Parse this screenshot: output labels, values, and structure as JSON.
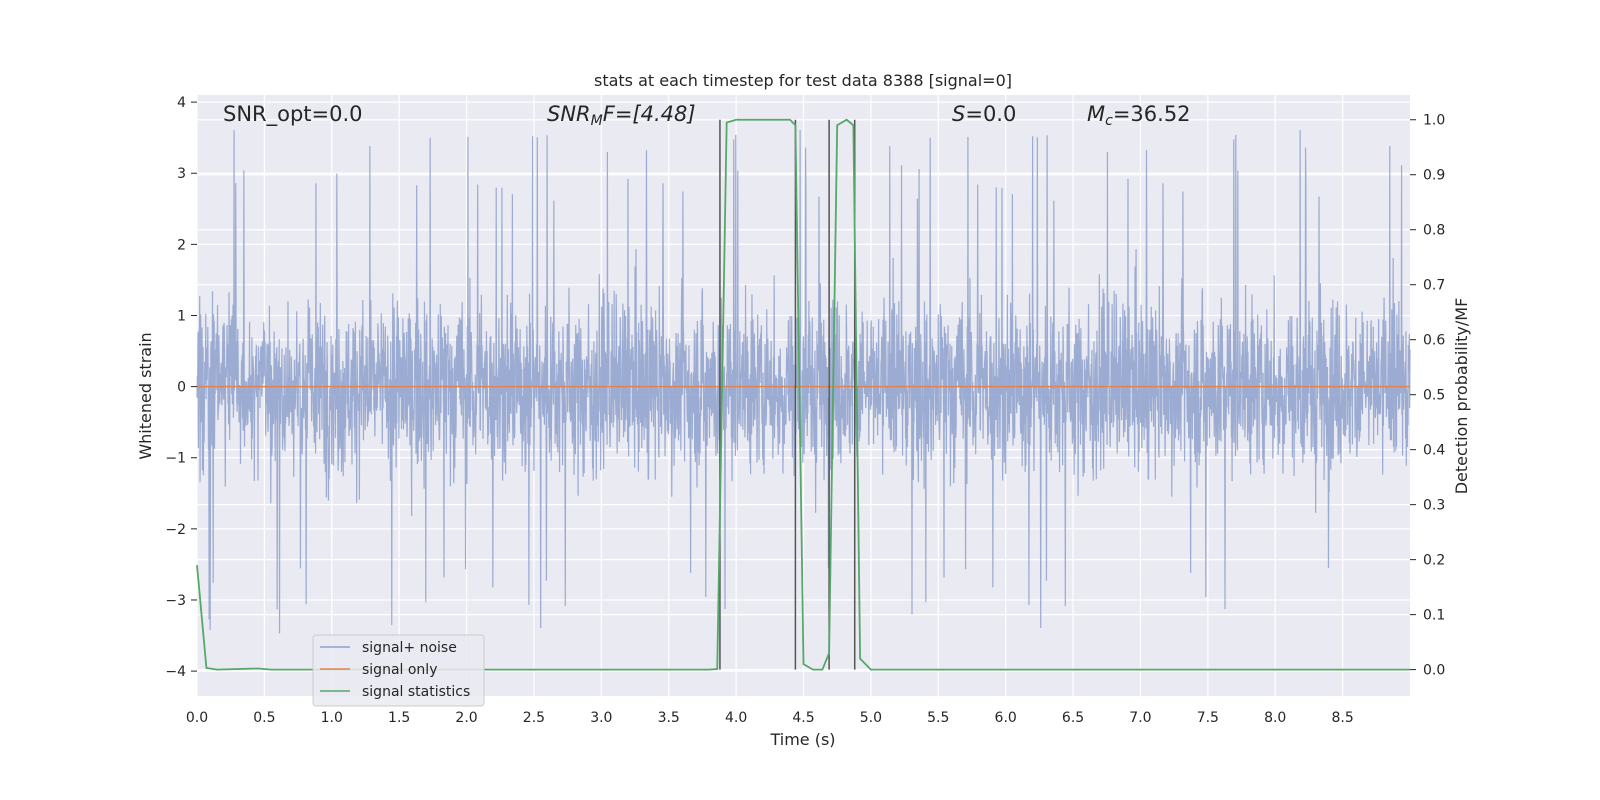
{
  "chart_data": {
    "type": "line",
    "title": "stats at each timestep for test data 8388 [signal=0]",
    "xlabel": "Time (s)",
    "ylabel": "Whitened strain",
    "ylabel_right": "Detection probability/MF",
    "xlim": [
      0.0,
      9.0
    ],
    "ylim": [
      -4.35,
      4.1
    ],
    "ylim_right": [
      -0.048,
      1.045
    ],
    "x_ticks": [
      "0.0",
      "0.5",
      "1.0",
      "1.5",
      "2.0",
      "2.5",
      "3.0",
      "3.5",
      "4.0",
      "4.5",
      "5.0",
      "5.5",
      "6.0",
      "6.5",
      "7.0",
      "7.5",
      "8.0",
      "8.5"
    ],
    "y_ticks": [
      "4",
      "3",
      "2",
      "1",
      "0",
      "−1",
      "−2",
      "−3",
      "−4"
    ],
    "y_ticks_right": [
      "1.0",
      "0.9",
      "0.8",
      "0.7",
      "0.6",
      "0.5",
      "0.4",
      "0.3",
      "0.2",
      "0.1",
      "0.0"
    ],
    "grid": true,
    "legend_position": "lower-left",
    "annotations": {
      "snr_opt": "SNR_opt=0.0",
      "snr_mf_sym": "SNR",
      "snr_mf_sub": "M",
      "snr_mf_rest": "F=[4.48]",
      "s_sym": "S",
      "s_rest": "=0.0",
      "mc_sym": "M",
      "mc_sub": "c",
      "mc_rest": "=36.52"
    },
    "series": [
      {
        "name": "signal+ noise",
        "color": "#8da0cb",
        "axis": "left",
        "description_values": "whitened noise, roughly within [-3.5, 3.7]",
        "envelope": {
          "core_low": -1.75,
          "core_high": 1.9,
          "peak_high": 3.7,
          "peak_low": -3.5
        }
      },
      {
        "name": "signal only",
        "color": "#dd8452",
        "axis": "left",
        "x": [
          0.0,
          9.0
        ],
        "y": [
          0.0,
          0.0
        ]
      },
      {
        "name": "signal statistics",
        "color": "#55a868",
        "axis": "right",
        "x": [
          0.0,
          0.07,
          0.15,
          0.45,
          0.55,
          3.8,
          3.86,
          3.93,
          4.0,
          4.4,
          4.44,
          4.5,
          4.57,
          4.64,
          4.69,
          4.75,
          4.82,
          4.87,
          4.92,
          5.0,
          9.0
        ],
        "y": [
          0.19,
          0.003,
          0.0,
          0.002,
          0.0,
          0.0,
          0.001,
          0.995,
          1.0,
          1.0,
          0.99,
          0.01,
          0.0,
          0.0,
          0.03,
          0.99,
          1.0,
          0.99,
          0.02,
          0.0,
          0.0
        ]
      }
    ],
    "vertical_markers_x": [
      3.88,
      4.44,
      4.69,
      4.88
    ]
  },
  "legend": {
    "items": [
      {
        "label": "signal+ noise",
        "color": "#8da0cb"
      },
      {
        "label": "signal only",
        "color": "#dd8452"
      },
      {
        "label": "signal statistics",
        "color": "#55a868"
      }
    ]
  },
  "style": {
    "plot_bg": "#eaeaf2",
    "grid_color": "#ffffff",
    "marker_color": "#555555"
  }
}
